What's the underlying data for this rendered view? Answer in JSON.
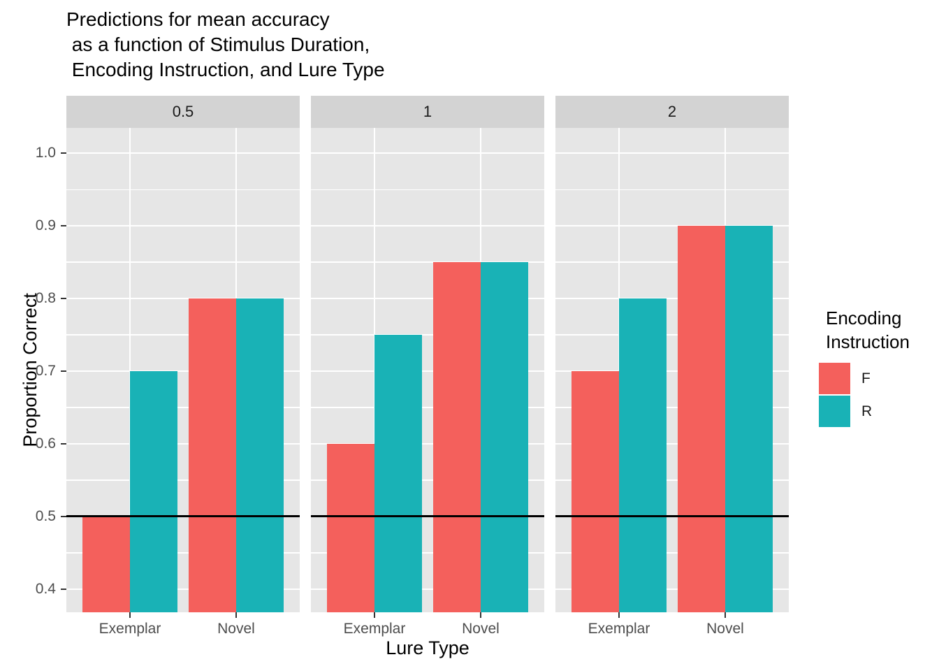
{
  "chart_data": {
    "type": "bar",
    "bar_position": "dodge",
    "title": "Predictions for mean accuracy \n as a function of Stimulus Duration,\n Encoding Instruction, and Lure Type",
    "xlabel": "Lure Type",
    "ylabel": "Proportion Correct",
    "facet_labels": [
      "0.5",
      "1",
      "2"
    ],
    "categories": [
      "Exemplar",
      "Novel"
    ],
    "series": [
      {
        "name": "F",
        "color": "#F4605C",
        "values_by_facet": [
          [
            0.5,
            0.8
          ],
          [
            0.6,
            0.85
          ],
          [
            0.7,
            0.9
          ]
        ]
      },
      {
        "name": "R",
        "color": "#19B2B6",
        "values_by_facet": [
          [
            0.7,
            0.8
          ],
          [
            0.75,
            0.85
          ],
          [
            0.8,
            0.9
          ]
        ]
      }
    ],
    "reference_line_y": 0.5,
    "y_ticks": [
      "0.4",
      "0.5",
      "0.6",
      "0.7",
      "0.8",
      "0.9",
      "1.0"
    ],
    "ylim": [
      0.368,
      1.035
    ],
    "grid": true,
    "legend_position": "right",
    "legend_title": "Encoding\nInstruction",
    "legend_labels": [
      "F",
      "R"
    ]
  }
}
